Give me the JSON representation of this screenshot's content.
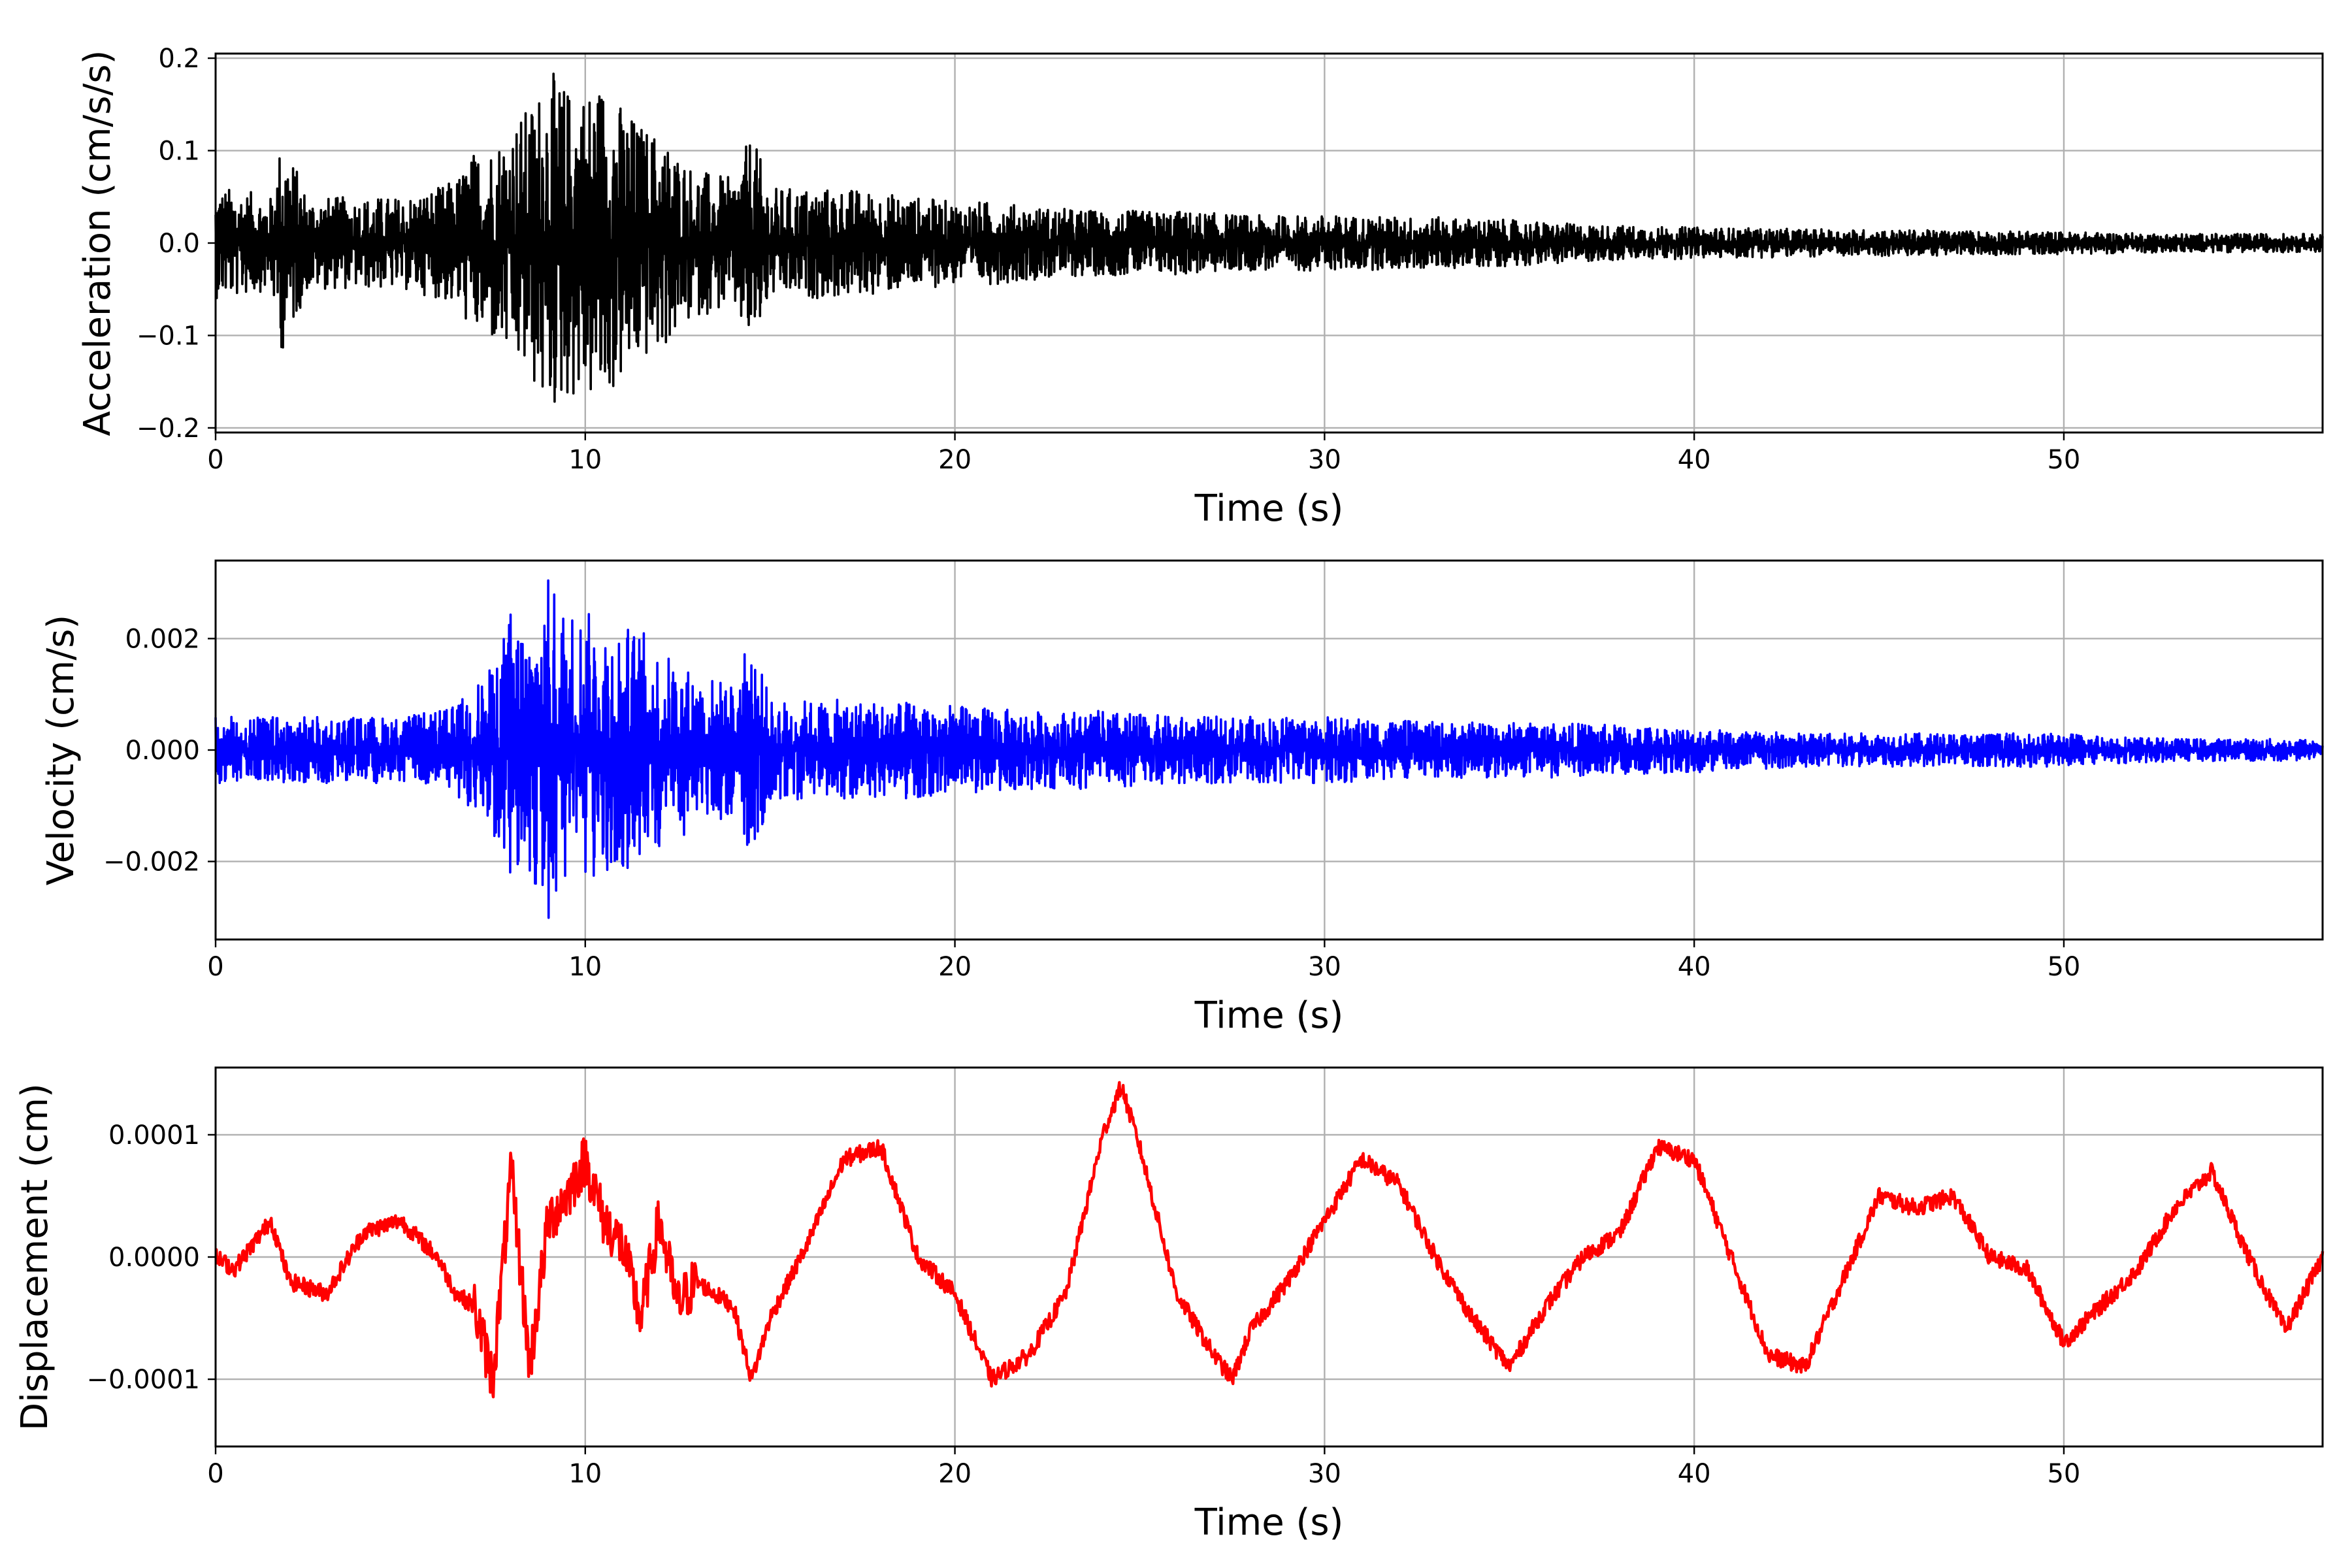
{
  "chart_data": [
    {
      "type": "line",
      "color": "#000000",
      "xlabel": "Time (s)",
      "ylabel": "Acceleration (cm/s/s)",
      "xlim": [
        0,
        57
      ],
      "ylim": [
        -0.205,
        0.205
      ],
      "xticks": [
        0,
        10,
        20,
        30,
        40,
        50
      ],
      "xtick_labels": [
        "0",
        "10",
        "20",
        "30",
        "40",
        "50"
      ],
      "yticks": [
        -0.2,
        -0.1,
        0.0,
        0.1,
        0.2
      ],
      "ytick_labels": [
        "−0.2",
        "−0.1",
        "0.0",
        "0.1",
        "0.2"
      ],
      "grid": true,
      "series": [
        {
          "x": [
            0,
            0.5,
            1,
            1.5,
            1.8,
            2.5,
            3,
            4,
            5,
            6,
            6.5,
            7,
            7.5,
            8,
            8.5,
            9,
            9.5,
            10,
            10.5,
            11,
            11.5,
            12,
            12.5,
            13,
            14,
            14.5,
            15,
            16,
            17,
            18,
            19,
            20,
            21,
            22,
            24,
            26,
            28,
            30,
            33,
            35,
            37,
            40,
            43,
            46,
            50,
            53,
            57
          ],
          "amplitude": [
            0.06,
            0.06,
            0.055,
            0.05,
            0.12,
            0.05,
            0.05,
            0.05,
            0.05,
            0.06,
            0.07,
            0.1,
            0.11,
            0.13,
            0.15,
            0.19,
            0.17,
            0.17,
            0.18,
            0.15,
            0.13,
            0.12,
            0.1,
            0.08,
            0.07,
            0.12,
            0.06,
            0.06,
            0.06,
            0.055,
            0.05,
            0.045,
            0.045,
            0.04,
            0.035,
            0.035,
            0.03,
            0.03,
            0.028,
            0.025,
            0.02,
            0.017,
            0.015,
            0.014,
            0.012,
            0.01,
            0.01
          ]
        }
      ]
    },
    {
      "type": "line",
      "color": "#0000ff",
      "xlabel": "Time (s)",
      "ylabel": "Velocity (cm/s)",
      "xlim": [
        0,
        57
      ],
      "ylim": [
        -0.0034,
        0.0034
      ],
      "xticks": [
        0,
        10,
        20,
        30,
        40,
        50
      ],
      "xtick_labels": [
        "0",
        "10",
        "20",
        "30",
        "40",
        "50"
      ],
      "yticks": [
        -0.002,
        0.0,
        0.002
      ],
      "ytick_labels": [
        "−0.002",
        "0.000",
        "0.002"
      ],
      "grid": true,
      "series": [
        {
          "x": [
            0,
            1,
            2,
            3,
            4,
            5,
            6,
            6.5,
            7,
            7.5,
            8,
            8.5,
            9,
            9.5,
            10,
            10.5,
            11,
            11.5,
            12,
            13,
            14,
            14.5,
            15,
            16,
            18,
            20,
            22,
            24,
            26,
            28,
            30,
            33,
            36,
            40,
            43,
            46,
            50,
            53,
            57
          ],
          "amplitude": [
            0.0006,
            0.0006,
            0.0006,
            0.0006,
            0.0006,
            0.0006,
            0.0007,
            0.0008,
            0.0012,
            0.0015,
            0.0026,
            0.0022,
            0.0031,
            0.0026,
            0.0025,
            0.0024,
            0.0023,
            0.0022,
            0.0018,
            0.0014,
            0.0012,
            0.0021,
            0.0009,
            0.0009,
            0.0009,
            0.0008,
            0.0007,
            0.0007,
            0.0006,
            0.0006,
            0.0006,
            0.0005,
            0.0005,
            0.0004,
            0.0003,
            0.0003,
            0.0003,
            0.0002,
            0.0002
          ]
        }
      ]
    },
    {
      "type": "line",
      "color": "#ff0000",
      "xlabel": "Time (s)",
      "ylabel": "Displacement (cm)",
      "xlim": [
        0,
        57
      ],
      "ylim": [
        -0.000155,
        0.000155
      ],
      "xticks": [
        0,
        10,
        20,
        30,
        40,
        50
      ],
      "xtick_labels": [
        "0",
        "10",
        "20",
        "30",
        "40",
        "50"
      ],
      "yticks": [
        -0.0001,
        0.0,
        0.0001
      ],
      "ytick_labels": [
        "−0.0001",
        "0.0000",
        "0.0001"
      ],
      "grid": true,
      "series": [
        {
          "x": [
            0,
            0.5,
            1,
            1.5,
            2,
            3,
            4,
            5,
            6,
            6.5,
            7,
            7.5,
            8,
            8.5,
            9,
            9.5,
            10,
            10.5,
            11,
            11.5,
            12,
            12.5,
            13,
            14,
            14.5,
            15,
            16,
            17,
            18,
            19,
            20,
            21,
            22,
            23,
            24,
            24.5,
            25,
            26,
            27,
            27.5,
            28,
            29,
            30,
            31,
            32,
            33,
            34,
            35,
            36,
            37,
            38,
            39,
            40,
            41,
            42,
            43,
            44,
            45,
            46,
            47,
            48,
            49,
            50,
            51,
            52,
            53,
            54,
            55,
            56,
            57
          ],
          "y": [
            0.0,
            -1e-05,
            1e-05,
            3e-05,
            -2e-05,
            -3e-05,
            2e-05,
            3e-05,
            0.0,
            -3e-05,
            -4e-05,
            -0.0001,
            7e-05,
            -9e-05,
            3e-05,
            5e-05,
            8e-05,
            3e-05,
            1e-05,
            -5e-05,
            3e-05,
            -4e-05,
            -2e-05,
            -4e-05,
            -0.0001,
            -5e-05,
            1e-05,
            8e-05,
            9e-05,
            0.0,
            -3e-05,
            -0.0001,
            -8e-05,
            -3e-05,
            0.0001,
            0.00014,
            9e-05,
            -3e-05,
            -8e-05,
            -0.0001,
            -6e-05,
            -2e-05,
            3e-05,
            8e-05,
            6e-05,
            0.0,
            -5e-05,
            -9e-05,
            -4e-05,
            0.0,
            2e-05,
            9e-05,
            8e-05,
            0.0,
            -8e-05,
            -9e-05,
            -2e-05,
            5e-05,
            4e-05,
            5e-05,
            0.0,
            -1e-05,
            -7e-05,
            -4e-05,
            -1e-05,
            4e-05,
            7e-05,
            0.0,
            -6e-05,
            0.0
          ]
        }
      ]
    }
  ]
}
